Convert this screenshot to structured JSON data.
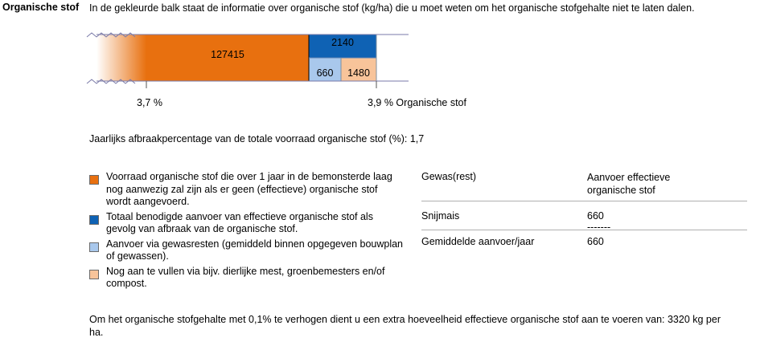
{
  "section_label": "Organische stof",
  "intro_text": "In de gekleurde balk staat de informatie over organische stof (kg/ha) die u moet weten om het organische stofgehalte niet te laten dalen.",
  "colors": {
    "orange": "#e8700f",
    "blue": "#0f62b4",
    "light_blue": "#a9c8ec",
    "peach": "#f8c49a"
  },
  "chart_data": {
    "type": "bar",
    "segments": [
      {
        "label": "127415",
        "value": 127415,
        "color": "#e8700f"
      },
      {
        "label": "2140",
        "value": 2140,
        "color": "#0f62b4"
      },
      {
        "label": "660",
        "value": 660,
        "color": "#a9c8ec"
      },
      {
        "label": "1480",
        "value": 1480,
        "color": "#f8c49a"
      }
    ],
    "tick_labels": [
      "3,7  %",
      "3,9 % Organische stof"
    ]
  },
  "rate_text": "Jaarlijks afbraakpercentage van de totale voorraad organische stof (%): 1,7",
  "legend": [
    {
      "color": "#e8700f",
      "text": "Voorraad organische stof die over 1 jaar in de bemonsterde laag nog aanwezig zal zijn als er geen (effectieve) organische stof wordt aangevoerd."
    },
    {
      "color": "#0f62b4",
      "text": "Totaal benodigde aanvoer van effectieve organische stof als gevolg van afbraak van de organische stof."
    },
    {
      "color": "#a9c8ec",
      "text": "Aanvoer via gewasresten (gemiddeld binnen opgegeven bouwplan of gewassen)."
    },
    {
      "color": "#f8c49a",
      "text": "Nog aan te vullen via bijv. dierlijke mest, groenbemesters en/of compost."
    }
  ],
  "table": {
    "header_col1": "Gewas(rest)",
    "header_col2": "Aanvoer effectieve organische stof",
    "rows": [
      {
        "crop": "Snijmais",
        "value": "660"
      }
    ],
    "separator": "-------",
    "total_label": "Gemiddelde aanvoer/jaar",
    "total_value": "660"
  },
  "footer_text": "Om het organische stofgehalte met 0,1% te verhogen dient u een extra hoeveelheid effectieve organische stof aan te voeren van: 3320 kg per ha."
}
